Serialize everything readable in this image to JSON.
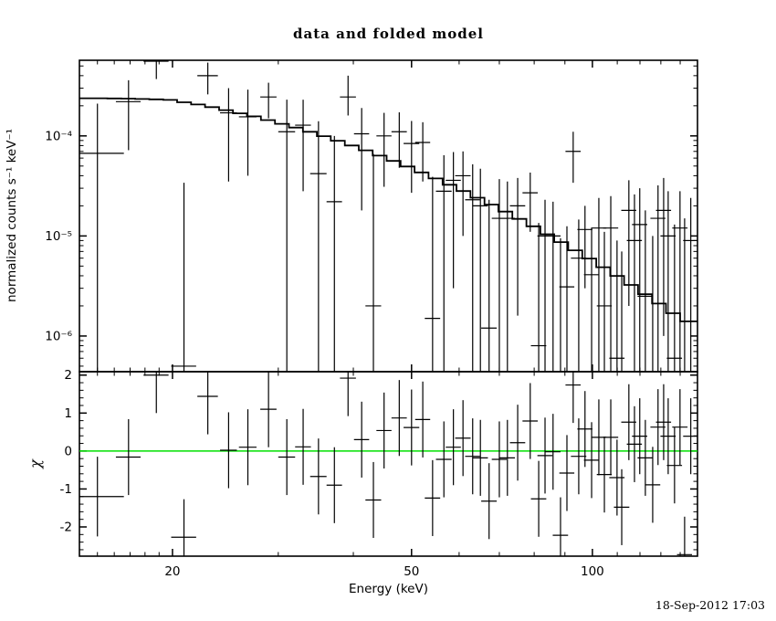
{
  "title": "data and folded model",
  "timestamp": "18-Sep-2012 17:03",
  "colors": {
    "foreground": "#000000",
    "model_line": "#000000",
    "zero_line": "#00e000",
    "background": "#ffffff"
  },
  "axes": {
    "x": {
      "label": "Energy (keV)",
      "scale": "log",
      "range_kev": [
        14.0,
        149.6
      ],
      "major_ticks": [
        20,
        50,
        100
      ],
      "major_tick_labels": [
        "20",
        "50",
        "100"
      ],
      "minor_ticks": [
        15,
        16,
        17,
        18,
        19,
        30,
        40,
        60,
        70,
        80,
        90,
        110,
        120,
        130,
        140
      ]
    },
    "y_top": {
      "label": "normalized counts s⁻¹ keV⁻¹",
      "scale": "log",
      "range": [
        4.4e-07,
        0.00057
      ],
      "major_ticks": [
        0.0001,
        1e-05,
        1e-06
      ],
      "major_tick_labels": [
        "10⁻⁴",
        "10⁻⁵",
        "10⁻⁶"
      ]
    },
    "y_bottom": {
      "label": "χ",
      "scale": "linear",
      "range": [
        -2.77,
        2.09
      ],
      "major_ticks": [
        2,
        1,
        0,
        -1,
        -2
      ],
      "major_tick_labels": [
        "2",
        "1",
        "0",
        "-1",
        "-2"
      ],
      "minor_tick_step": 0.2,
      "zero_line_value": 0
    }
  },
  "chart_data": [
    {
      "type": "line",
      "name": "folded model",
      "style": "histogram-step",
      "x_unit": "keV",
      "y_unit": "counts s-1 keV-1",
      "bin_edges_kev": [
        14.0,
        14.77,
        15.58,
        16.44,
        17.34,
        18.3,
        19.3,
        20.36,
        21.48,
        22.66,
        23.91,
        25.22,
        26.61,
        28.07,
        29.62,
        31.25,
        32.97,
        34.78,
        36.69,
        38.71,
        40.84,
        43.08,
        45.45,
        47.95,
        50.59,
        53.37,
        56.31,
        59.4,
        62.67,
        66.12,
        69.75,
        73.59,
        77.64,
        81.91,
        86.41,
        91.16,
        96.18,
        101.47,
        107.05,
        112.93,
        119.14,
        125.69,
        132.6,
        140.0,
        149.6
      ],
      "values": [
        0.000238,
        0.000238,
        0.000237,
        0.000236,
        0.000234,
        0.000232,
        0.000229,
        0.000217,
        0.000206,
        0.000194,
        0.000181,
        0.000168,
        0.000157,
        0.000144,
        0.000132,
        0.000121,
        0.00011,
        9.94e-05,
        8.95e-05,
        8.03e-05,
        7.17e-05,
        6.35e-05,
        5.62e-05,
        4.95e-05,
        4.32e-05,
        3.76e-05,
        3.25e-05,
        2.81e-05,
        2.41e-05,
        2.06e-05,
        1.75e-05,
        1.48e-05,
        1.25e-05,
        1.04e-05,
        8.69e-06,
        7.19e-06,
        5.95e-06,
        4.87e-06,
        3.99e-06,
        3.24e-06,
        2.62e-06,
        2.11e-06,
        1.69e-06,
        1.4e-06
      ]
    },
    {
      "type": "scatter",
      "name": "data with errors",
      "marker": "cross-errorbar",
      "x_unit": "keV",
      "y_unit": "counts s-1 keV-1",
      "columns": [
        "energy_kev",
        "half_width_kev",
        "value",
        "err_lo_bound",
        "err_hi_bound"
      ],
      "points": [
        [
          15.0,
          1.6,
          6.7e-05,
          0,
          0.00021
        ],
        [
          16.9,
          0.8,
          0.00022,
          7.2e-05,
          0.00036
        ],
        [
          18.8,
          0.9,
          0.00056,
          0.00037,
          0.0009
        ],
        [
          20.9,
          1.0,
          5e-07,
          0,
          3.4e-05
        ],
        [
          22.9,
          0.9,
          0.0004,
          0.00026,
          0.00054
        ],
        [
          24.8,
          0.8,
          0.00017,
          3.5e-05,
          0.0003
        ],
        [
          26.7,
          0.9,
          0.000155,
          4e-05,
          0.00029
        ],
        [
          28.9,
          0.9,
          0.000245,
          0.00015,
          0.00034
        ],
        [
          31.0,
          1.0,
          0.00011,
          0,
          0.00023
        ],
        [
          33.0,
          1.0,
          0.000128,
          2.8e-05,
          0.00023
        ],
        [
          35.0,
          1.1,
          4.2e-05,
          0,
          0.00014
        ],
        [
          37.2,
          1.1,
          2.2e-05,
          0,
          0.0001
        ],
        [
          39.2,
          1.2,
          0.000245,
          0.00016,
          0.0004
        ],
        [
          41.3,
          1.2,
          0.000105,
          1.8e-05,
          0.00019
        ],
        [
          43.2,
          1.3,
          2e-06,
          0,
          6.6e-05
        ],
        [
          45.0,
          1.3,
          0.0001,
          3.1e-05,
          0.00017
        ],
        [
          47.7,
          1.4,
          0.00011,
          4.8e-05,
          0.000172
        ],
        [
          50.0,
          1.5,
          8.4e-05,
          2.7e-05,
          0.000141
        ],
        [
          52.2,
          1.5,
          8.6e-05,
          3.5e-05,
          0.000137
        ],
        [
          54.2,
          1.6,
          1.5e-06,
          0,
          3.9e-05
        ],
        [
          56.6,
          1.7,
          2.8e-05,
          0,
          6.4e-05
        ],
        [
          58.7,
          1.7,
          3.6e-05,
          3e-06,
          6.9e-05
        ],
        [
          60.9,
          1.8,
          4e-05,
          1e-05,
          7e-05
        ],
        [
          63.2,
          1.8,
          2.3e-05,
          0,
          5.2e-05
        ],
        [
          65.1,
          1.9,
          2e-05,
          0,
          4.7e-05
        ],
        [
          67.3,
          2.0,
          1.2e-06,
          0,
          2.3e-05
        ],
        [
          70.0,
          2.0,
          1.5e-05,
          0,
          3.7e-05
        ],
        [
          72.2,
          2.1,
          1.5e-05,
          0,
          3.5e-05
        ],
        [
          75.1,
          2.2,
          2e-05,
          1.6e-06,
          3.8e-05
        ],
        [
          78.8,
          2.3,
          2.7e-05,
          1.1e-05,
          4.3e-05
        ],
        [
          81.4,
          2.4,
          8e-07,
          0,
          1.35e-05
        ],
        [
          83.4,
          2.4,
          1e-05,
          0,
          2.3e-05
        ],
        [
          86.0,
          2.5,
          1e-05,
          0,
          2.2e-05
        ],
        [
          88.5,
          2.6,
          4e-07,
          0,
          9.5e-06
        ],
        [
          90.7,
          2.6,
          3.1e-06,
          0,
          1.25e-05
        ],
        [
          92.9,
          2.7,
          7e-05,
          3.4e-05,
          0.00011
        ],
        [
          94.9,
          2.8,
          6e-06,
          0,
          1.46e-05
        ],
        [
          97.2,
          2.8,
          1.16e-05,
          3e-06,
          2e-05
        ],
        [
          99.7,
          2.9,
          4.1e-06,
          0,
          1.2e-05
        ],
        [
          102.5,
          3.0,
          1.2e-05,
          0,
          2.4e-05
        ],
        [
          104.7,
          3.0,
          2e-06,
          0,
          1.1e-05
        ],
        [
          107.3,
          3.1,
          1.2e-05,
          0,
          2.5e-05
        ],
        [
          109.9,
          3.2,
          6e-07,
          0,
          9e-06
        ],
        [
          111.9,
          3.3,
          4e-07,
          0,
          7e-06
        ],
        [
          115.0,
          3.3,
          1.8e-05,
          2e-06,
          3.6e-05
        ],
        [
          117.5,
          3.4,
          9e-06,
          0,
          2.6e-05
        ],
        [
          119.9,
          3.5,
          1.3e-05,
          0,
          3e-05
        ],
        [
          122.5,
          3.6,
          2.5e-06,
          0,
          1.8e-05
        ],
        [
          126.0,
          3.7,
          4e-07,
          0,
          1e-05
        ],
        [
          128.6,
          3.7,
          1.5e-05,
          0,
          3.2e-05
        ],
        [
          131.4,
          3.8,
          1.8e-05,
          1e-06,
          3.8e-05
        ],
        [
          133.7,
          3.9,
          1e-05,
          0,
          2.8e-05
        ],
        [
          137.0,
          4.0,
          6e-07,
          0,
          1.3e-05
        ],
        [
          139.9,
          4.1,
          1.2e-05,
          0,
          2.8e-05
        ],
        [
          142.4,
          4.1,
          2e-07,
          0,
          1.5e-05
        ],
        [
          145.8,
          4.2,
          9e-06,
          0,
          2.4e-05
        ]
      ]
    },
    {
      "type": "scatter",
      "name": "chi residuals",
      "marker": "cross-errorbar",
      "x_unit": "keV",
      "columns": [
        "energy_kev",
        "half_width_kev",
        "chi",
        "chi_err"
      ],
      "points": [
        [
          15.0,
          1.6,
          -1.2,
          1.05
        ],
        [
          16.9,
          0.8,
          -0.16,
          1.0
        ],
        [
          18.8,
          0.9,
          2.0,
          1.0
        ],
        [
          20.9,
          1.0,
          -2.27,
          1.0
        ],
        [
          22.9,
          0.9,
          1.44,
          1.0
        ],
        [
          24.8,
          0.8,
          0.02,
          1.0
        ],
        [
          26.7,
          0.9,
          0.1,
          1.0
        ],
        [
          28.9,
          0.9,
          1.1,
          1.0
        ],
        [
          31.0,
          1.0,
          -0.16,
          1.0
        ],
        [
          33.0,
          1.0,
          0.11,
          1.0
        ],
        [
          35.0,
          1.1,
          -0.67,
          1.0
        ],
        [
          37.2,
          1.1,
          -0.9,
          1.0
        ],
        [
          39.2,
          1.2,
          1.92,
          1.0
        ],
        [
          41.3,
          1.2,
          0.3,
          1.0
        ],
        [
          43.2,
          1.3,
          -1.29,
          1.0
        ],
        [
          45.0,
          1.3,
          0.54,
          1.0
        ],
        [
          47.7,
          1.4,
          0.87,
          1.0
        ],
        [
          50.0,
          1.5,
          0.62,
          1.0
        ],
        [
          52.2,
          1.5,
          0.83,
          1.0
        ],
        [
          54.2,
          1.6,
          -1.24,
          1.0
        ],
        [
          56.6,
          1.7,
          -0.22,
          1.0
        ],
        [
          58.7,
          1.7,
          0.1,
          1.0
        ],
        [
          60.9,
          1.8,
          0.34,
          1.0
        ],
        [
          63.2,
          1.8,
          -0.14,
          1.0
        ],
        [
          65.1,
          1.9,
          -0.18,
          1.0
        ],
        [
          67.3,
          2.0,
          -1.32,
          1.0
        ],
        [
          70.0,
          2.0,
          -0.22,
          1.0
        ],
        [
          72.2,
          2.1,
          -0.18,
          1.0
        ],
        [
          75.1,
          2.2,
          0.22,
          1.0
        ],
        [
          78.8,
          2.3,
          0.79,
          1.0
        ],
        [
          81.4,
          2.4,
          -1.26,
          1.0
        ],
        [
          83.4,
          2.4,
          -0.12,
          1.0
        ],
        [
          86.0,
          2.5,
          -0.02,
          1.0
        ],
        [
          88.5,
          2.6,
          -2.22,
          1.0
        ],
        [
          90.7,
          2.6,
          -0.58,
          1.0
        ],
        [
          92.9,
          2.7,
          1.74,
          1.0
        ],
        [
          94.9,
          2.8,
          -0.14,
          1.0
        ],
        [
          97.2,
          2.8,
          0.58,
          1.0
        ],
        [
          99.7,
          2.9,
          -0.24,
          1.0
        ],
        [
          102.5,
          3.0,
          0.36,
          1.0
        ],
        [
          104.7,
          3.0,
          -0.62,
          1.0
        ],
        [
          107.3,
          3.1,
          0.36,
          1.0
        ],
        [
          109.9,
          3.2,
          -0.7,
          1.0
        ],
        [
          111.9,
          3.3,
          -1.48,
          1.0
        ],
        [
          115.0,
          3.3,
          0.76,
          1.0
        ],
        [
          117.5,
          3.4,
          0.18,
          1.0
        ],
        [
          119.9,
          3.5,
          0.39,
          1.0
        ],
        [
          122.5,
          3.6,
          -0.18,
          1.0
        ],
        [
          126.0,
          3.7,
          -0.89,
          1.0
        ],
        [
          128.6,
          3.7,
          0.63,
          1.0
        ],
        [
          131.4,
          3.8,
          0.76,
          1.0
        ],
        [
          133.7,
          3.9,
          0.39,
          1.0
        ],
        [
          137.0,
          4.0,
          -0.38,
          1.0
        ],
        [
          139.9,
          4.1,
          0.63,
          1.0
        ],
        [
          142.4,
          4.1,
          -2.73,
          1.0
        ],
        [
          145.8,
          4.2,
          0.39,
          1.0
        ]
      ]
    }
  ]
}
